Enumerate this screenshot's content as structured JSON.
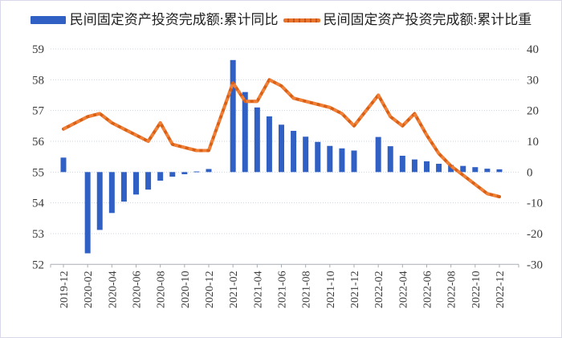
{
  "legend": {
    "bar_label": "民间固定资产投资完成额:累计同比",
    "line_label": "民间固定资产投资完成额:累计比重"
  },
  "colors": {
    "bar": "#3160c4",
    "line_dark": "#d96014",
    "line_light": "#f08038",
    "grid": "#c9d6e2",
    "axis_line": "#a8aeb4",
    "axis_text": "#3c3c3c"
  },
  "chart_data": {
    "type": "combo-bar-line",
    "categories": [
      "2019-12",
      "2020-02",
      "2020-03",
      "2020-04",
      "2020-05",
      "2020-06",
      "2020-07",
      "2020-08",
      "2020-09",
      "2020-10",
      "2020-11",
      "2020-12",
      "2021-02",
      "2021-03",
      "2021-04",
      "2021-05",
      "2021-06",
      "2021-07",
      "2021-08",
      "2021-09",
      "2021-10",
      "2021-11",
      "2021-12",
      "2022-02",
      "2022-03",
      "2022-04",
      "2022-05",
      "2022-06",
      "2022-07",
      "2022-08",
      "2022-09",
      "2022-10",
      "2022-11",
      "2022-12"
    ],
    "series": [
      {
        "name": "民间固定资产投资完成额:累计同比",
        "type": "bar",
        "axis": "right",
        "unit": "%",
        "values": [
          4.7,
          -26.4,
          -18.8,
          -13.3,
          -9.6,
          -7.3,
          -5.7,
          -2.8,
          -1.5,
          -0.7,
          0.2,
          1.0,
          36.4,
          26.0,
          21.0,
          18.1,
          15.4,
          13.4,
          11.5,
          9.8,
          8.5,
          7.7,
          7.0,
          11.4,
          8.4,
          5.3,
          4.1,
          3.5,
          2.7,
          2.3,
          2.0,
          1.6,
          1.1,
          0.9
        ]
      },
      {
        "name": "民间固定资产投资完成额:累计比重",
        "type": "line",
        "axis": "left",
        "unit": "%",
        "values": [
          56.4,
          56.8,
          56.9,
          56.6,
          56.4,
          56.2,
          56.0,
          56.6,
          55.9,
          55.8,
          55.7,
          55.7,
          57.9,
          57.3,
          57.3,
          58.0,
          57.8,
          57.4,
          57.3,
          57.2,
          57.1,
          56.9,
          56.5,
          57.5,
          56.8,
          56.5,
          56.9,
          56.2,
          55.6,
          55.2,
          54.9,
          54.6,
          54.3,
          54.2
        ]
      }
    ],
    "left_axis": {
      "min": 52,
      "max": 59,
      "ticks": [
        59,
        58,
        57,
        56,
        55,
        54,
        53,
        52
      ]
    },
    "right_axis": {
      "min": -30,
      "max": 40,
      "ticks": [
        40,
        30,
        20,
        10,
        0,
        -10,
        -20,
        -30
      ]
    },
    "x_tick_labels": [
      "2019-12",
      "2020-02",
      "2020-04",
      "2020-06",
      "2020-08",
      "2020-10",
      "2020-12",
      "2021-02",
      "2021-04",
      "2021-06",
      "2021-08",
      "2021-10",
      "2021-12",
      "2022-02",
      "2022-04",
      "2022-06",
      "2022-08",
      "2022-10",
      "2022-12"
    ],
    "grid": "dotted-horizontal",
    "legend_position": "top-center"
  }
}
